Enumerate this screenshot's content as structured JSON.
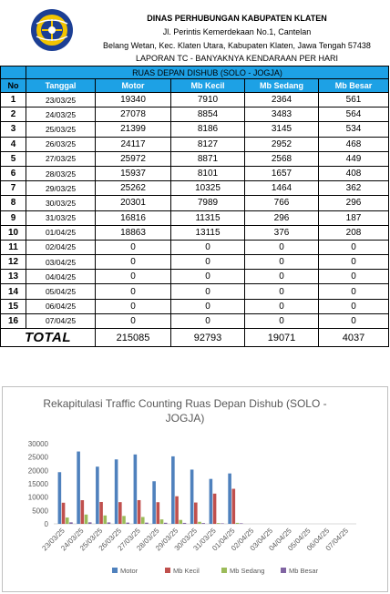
{
  "header": {
    "title": "DINAS PERHUBUNGAN KABUPATEN KLATEN",
    "address1": "Jl. Perintis Kemerdekaan No.1, Cantelan",
    "address2": "Belang Wetan, Kec. Klaten Utara, Kabupaten Klaten, Jawa Tengah 57438",
    "report": "LAPORAN TC - BANYAKNYA KENDARAAN PER HARI"
  },
  "table": {
    "ruas": "RUAS DEPAN DISHUB (SOLO - JOGJA)",
    "columns": [
      "No",
      "Tanggal",
      "Motor",
      "Mb Kecil",
      "Mb Sedang",
      "Mb Besar"
    ],
    "rows": [
      [
        "1",
        "23/03/25",
        "19340",
        "7910",
        "2364",
        "561"
      ],
      [
        "2",
        "24/03/25",
        "27078",
        "8854",
        "3483",
        "564"
      ],
      [
        "3",
        "25/03/25",
        "21399",
        "8186",
        "3145",
        "534"
      ],
      [
        "4",
        "26/03/25",
        "24117",
        "8127",
        "2952",
        "468"
      ],
      [
        "5",
        "27/03/25",
        "25972",
        "8871",
        "2568",
        "449"
      ],
      [
        "6",
        "28/03/25",
        "15937",
        "8101",
        "1657",
        "408"
      ],
      [
        "7",
        "29/03/25",
        "25262",
        "10325",
        "1464",
        "362"
      ],
      [
        "8",
        "30/03/25",
        "20301",
        "7989",
        "766",
        "296"
      ],
      [
        "9",
        "31/03/25",
        "16816",
        "11315",
        "296",
        "187"
      ],
      [
        "10",
        "01/04/25",
        "18863",
        "13115",
        "376",
        "208"
      ],
      [
        "11",
        "02/04/25",
        "0",
        "0",
        "0",
        "0"
      ],
      [
        "12",
        "03/04/25",
        "0",
        "0",
        "0",
        "0"
      ],
      [
        "13",
        "04/04/25",
        "0",
        "0",
        "0",
        "0"
      ],
      [
        "14",
        "05/04/25",
        "0",
        "0",
        "0",
        "0"
      ],
      [
        "15",
        "06/04/25",
        "0",
        "0",
        "0",
        "0"
      ],
      [
        "16",
        "07/04/25",
        "0",
        "0",
        "0",
        "0"
      ]
    ],
    "total": {
      "label": "TOTAL",
      "motor": "215085",
      "mb_kecil": "92793",
      "mb_sedang": "19071",
      "mb_besar": "4037"
    }
  },
  "chart_data": {
    "type": "bar",
    "title": "Rekapitulasi Traffic Counting  Ruas Depan Dishub (SOLO - JOGJA)",
    "categories": [
      "23/03/25",
      "24/03/25",
      "25/03/25",
      "26/03/25",
      "27/03/25",
      "28/03/25",
      "29/03/25",
      "30/03/25",
      "31/03/25",
      "01/04/25",
      "02/04/25",
      "03/04/25",
      "04/04/25",
      "05/04/25",
      "06/04/25",
      "07/04/25"
    ],
    "series": [
      {
        "name": "Motor",
        "color": "#4f81bd",
        "values": [
          19340,
          27078,
          21399,
          24117,
          25972,
          15937,
          25262,
          20301,
          16816,
          18863,
          0,
          0,
          0,
          0,
          0,
          0
        ]
      },
      {
        "name": "Mb Kecil",
        "color": "#c0504d",
        "values": [
          7910,
          8854,
          8186,
          8127,
          8871,
          8101,
          10325,
          7989,
          11315,
          13115,
          0,
          0,
          0,
          0,
          0,
          0
        ]
      },
      {
        "name": "Mb Sedang",
        "color": "#9bbb59",
        "values": [
          2364,
          3483,
          3145,
          2952,
          2568,
          1657,
          1464,
          766,
          296,
          376,
          0,
          0,
          0,
          0,
          0,
          0
        ]
      },
      {
        "name": "Mb Besar",
        "color": "#8064a2",
        "values": [
          561,
          564,
          534,
          468,
          449,
          408,
          362,
          296,
          187,
          208,
          0,
          0,
          0,
          0,
          0,
          0
        ]
      }
    ],
    "yticks": [
      "0",
      "5000",
      "10000",
      "15000",
      "20000",
      "25000",
      "30000"
    ],
    "ylim": [
      0,
      30000
    ],
    "grid": false,
    "legend": "bottom"
  }
}
